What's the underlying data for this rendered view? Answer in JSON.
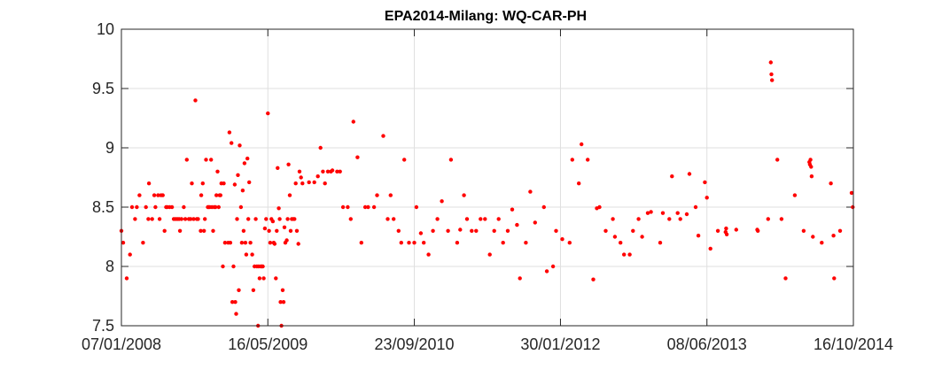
{
  "chart_data": {
    "type": "scatter",
    "title": "EPA2014-Milang: WQ-CAR-PH",
    "xlabel": "",
    "ylabel": "",
    "x_is_date": true,
    "xlim": [
      "2008-01-07",
      "2014-10-16"
    ],
    "ylim": [
      7.5,
      10
    ],
    "x_ticks": [
      "2008-01-07",
      "2009-05-16",
      "2010-09-23",
      "2012-01-30",
      "2013-06-08",
      "2014-10-16"
    ],
    "x_tick_labels": [
      "07/01/2008",
      "16/05/2009",
      "23/09/2010",
      "30/01/2012",
      "08/06/2013",
      "16/10/2014"
    ],
    "y_ticks": [
      7.5,
      8,
      8.5,
      9,
      9.5,
      10
    ],
    "y_tick_labels": [
      "7.5",
      "8",
      "8.5",
      "9",
      "9.5",
      "10"
    ],
    "grid": true,
    "series": [
      {
        "marker_color": "#ff0000",
        "points": [
          [
            "2008-01-07",
            8.3
          ],
          [
            "2008-01-13",
            8.2
          ],
          [
            "2008-01-25",
            7.9
          ],
          [
            "2008-02-05",
            8.1
          ],
          [
            "2008-02-12",
            8.5
          ],
          [
            "2008-02-22",
            8.4
          ],
          [
            "2008-02-28",
            8.5
          ],
          [
            "2008-03-08",
            8.6
          ],
          [
            "2008-03-20",
            8.2
          ],
          [
            "2008-03-30",
            8.5
          ],
          [
            "2008-04-07",
            8.4
          ],
          [
            "2008-04-09",
            8.7
          ],
          [
            "2008-04-20",
            8.4
          ],
          [
            "2008-04-27",
            8.6
          ],
          [
            "2008-05-01",
            8.5
          ],
          [
            "2008-05-10",
            8.6
          ],
          [
            "2008-05-20",
            8.6
          ],
          [
            "2008-05-26",
            8.6
          ],
          [
            "2008-06-01",
            8.3
          ],
          [
            "2008-06-10",
            8.5
          ],
          [
            "2008-06-18",
            8.5
          ],
          [
            "2008-06-26",
            8.5
          ],
          [
            "2008-07-08",
            8.4
          ],
          [
            "2008-07-14",
            8.4
          ],
          [
            "2008-07-20",
            8.4
          ],
          [
            "2008-07-28",
            8.4
          ],
          [
            "2008-08-05",
            8.5
          ],
          [
            "2008-08-10",
            8.4
          ],
          [
            "2008-08-15",
            8.9
          ],
          [
            "2008-08-22",
            8.4
          ],
          [
            "2008-09-01",
            8.7
          ],
          [
            "2008-09-07",
            8.4
          ],
          [
            "2008-09-13",
            9.4
          ],
          [
            "2008-09-22",
            8.4
          ],
          [
            "2008-10-01",
            8.3
          ],
          [
            "2008-10-03",
            8.6
          ],
          [
            "2008-10-08",
            8.7
          ],
          [
            "2008-10-12",
            8.3
          ],
          [
            "2008-10-19",
            8.9
          ],
          [
            "2008-10-25",
            8.5
          ],
          [
            "2008-11-01",
            8.5
          ],
          [
            "2008-11-05",
            8.9
          ],
          [
            "2008-11-12",
            8.3
          ],
          [
            "2008-11-20",
            8.5
          ],
          [
            "2008-11-27",
            8.8
          ],
          [
            "2008-12-04",
            8.6
          ],
          [
            "2008-12-10",
            8.7
          ],
          [
            "2008-12-15",
            8.0
          ],
          [
            "2008-12-22",
            8.2
          ],
          [
            "2009-01-02",
            8.2
          ],
          [
            "2009-01-06",
            9.13
          ],
          [
            "2009-01-13",
            9.04
          ],
          [
            "2009-01-16",
            7.7
          ],
          [
            "2009-01-20",
            8.0
          ],
          [
            "2009-01-24",
            8.69
          ],
          [
            "2009-01-29",
            7.6
          ],
          [
            "2009-02-04",
            8.77
          ],
          [
            "2009-02-10",
            9.02
          ],
          [
            "2009-02-14",
            8.5
          ],
          [
            "2009-02-20",
            8.64
          ],
          [
            "2009-02-26",
            8.87
          ],
          [
            "2009-03-04",
            8.1
          ],
          [
            "2009-03-08",
            8.91
          ],
          [
            "2009-03-14",
            8.71
          ],
          [
            "2009-03-28",
            7.8
          ],
          [
            "2009-04-05",
            8.4
          ],
          [
            "2009-04-13",
            7.5
          ],
          [
            "2009-04-15",
            8.0
          ],
          [
            "2009-04-22",
            8.0
          ],
          [
            "2009-04-29",
            8.0
          ],
          [
            "2009-05-06",
            8.32
          ],
          [
            "2009-05-16",
            9.29
          ],
          [
            "2009-05-20",
            8.3
          ],
          [
            "2009-06-02",
            8.38
          ],
          [
            "2009-06-08",
            8.19
          ],
          [
            "2009-06-12",
            7.9
          ],
          [
            "2009-06-18",
            8.83
          ],
          [
            "2009-06-22",
            8.49
          ],
          [
            "2009-06-28",
            7.7
          ],
          [
            "2009-07-05",
            7.8
          ],
          [
            "2009-07-11",
            8.33
          ],
          [
            "2009-07-19",
            8.22
          ],
          [
            "2009-07-25",
            8.86
          ],
          [
            "2009-08-01",
            8.3
          ],
          [
            "2009-08-10",
            8.4
          ],
          [
            "2009-08-18",
            8.7
          ],
          [
            "2009-08-27",
            8.19
          ],
          [
            "2009-09-05",
            8.75
          ],
          [
            "2009-10-02",
            8.71
          ],
          [
            "2009-11-10",
            9.0
          ],
          [
            "2009-11-25",
            8.7
          ],
          [
            "2009-12-05",
            8.8
          ],
          [
            "2009-12-15",
            8.8
          ],
          [
            "2010-01-05",
            8.8
          ],
          [
            "2010-01-25",
            8.5
          ],
          [
            "2010-02-10",
            8.5
          ],
          [
            "2010-03-01",
            9.22
          ],
          [
            "2010-03-28",
            8.2
          ],
          [
            "2010-05-10",
            8.5
          ],
          [
            "2010-06-10",
            9.1
          ],
          [
            "2010-07-15",
            8.4
          ],
          [
            "2010-08-20",
            8.9
          ],
          [
            "2010-09-23",
            8.2
          ],
          [
            "2010-10-15",
            8.28
          ],
          [
            "2010-11-10",
            8.1
          ],
          [
            "2010-12-10",
            8.4
          ],
          [
            "2011-01-15",
            8.3
          ],
          [
            "2011-02-15",
            8.2
          ],
          [
            "2011-03-20",
            8.4
          ],
          [
            "2011-04-20",
            8.3
          ],
          [
            "2011-05-20",
            8.4
          ],
          [
            "2011-06-20",
            8.3
          ],
          [
            "2011-07-20",
            8.2
          ],
          [
            "2011-08-20",
            8.48
          ],
          [
            "2011-09-15",
            7.9
          ],
          [
            "2011-10-20",
            8.63
          ],
          [
            "2011-12-15",
            7.96
          ],
          [
            "2012-01-15",
            8.3
          ],
          [
            "2012-03-10",
            8.9
          ],
          [
            "2012-04-10",
            9.03
          ],
          [
            "2012-05-20",
            7.89
          ],
          [
            "2012-06-10",
            8.5
          ],
          [
            "2012-07-25",
            8.4
          ],
          [
            "2012-08-20",
            8.2
          ],
          [
            "2012-09-20",
            8.1
          ],
          [
            "2012-10-20",
            8.4
          ],
          [
            "2012-11-20",
            8.45
          ],
          [
            "2013-01-10",
            8.45
          ],
          [
            "2013-02-10",
            8.76
          ],
          [
            "2013-03-10",
            8.4
          ],
          [
            "2013-04-10",
            8.78
          ],
          [
            "2013-05-10",
            8.26
          ],
          [
            "2013-06-08",
            8.58
          ],
          [
            "2013-07-15",
            8.3
          ],
          [
            "2013-09-15",
            8.31
          ],
          [
            "2014-01-01",
            8.4
          ],
          [
            "2014-02-01",
            8.9
          ],
          [
            "2014-03-01",
            7.9
          ],
          [
            "2014-04-01",
            8.6
          ],
          [
            "2014-05-01",
            8.3
          ],
          [
            "2014-06-01",
            8.25
          ],
          [
            "2014-07-01",
            8.2
          ],
          [
            "2014-08-01",
            8.7
          ],
          [
            "2014-09-01",
            8.3
          ],
          [
            "2014-10-10",
            8.62
          ],
          [
            "2014-10-14",
            8.5
          ],
          [
            "2008-05-15",
            8.4
          ],
          [
            "2008-06-06",
            8.5
          ],
          [
            "2008-07-02",
            8.4
          ],
          [
            "2008-07-23",
            8.3
          ],
          [
            "2008-08-28",
            8.4
          ],
          [
            "2008-09-18",
            8.4
          ],
          [
            "2008-10-15",
            8.4
          ],
          [
            "2008-10-28",
            8.5
          ],
          [
            "2008-11-08",
            8.5
          ],
          [
            "2008-11-16",
            8.5
          ],
          [
            "2008-11-23",
            8.6
          ],
          [
            "2008-12-01",
            8.5
          ],
          [
            "2008-12-07",
            8.6
          ],
          [
            "2008-12-18",
            8.7
          ],
          [
            "2009-01-09",
            8.2
          ],
          [
            "2009-01-26",
            7.7
          ],
          [
            "2009-02-01",
            8.4
          ],
          [
            "2009-02-07",
            7.8
          ],
          [
            "2009-02-17",
            8.2
          ],
          [
            "2009-02-23",
            8.3
          ],
          [
            "2009-03-01",
            8.2
          ],
          [
            "2009-03-11",
            8.4
          ],
          [
            "2009-03-18",
            8.2
          ],
          [
            "2009-03-24",
            8.1
          ],
          [
            "2009-04-01",
            8.0
          ],
          [
            "2009-04-09",
            8.0
          ],
          [
            "2009-04-18",
            7.9
          ],
          [
            "2009-04-25",
            8.0
          ],
          [
            "2009-05-02",
            7.9
          ],
          [
            "2009-05-10",
            8.4
          ],
          [
            "2009-05-24",
            8.2
          ],
          [
            "2009-05-28",
            8.4
          ],
          [
            "2009-06-05",
            8.2
          ],
          [
            "2009-06-15",
            8.3
          ],
          [
            "2009-06-25",
            8.4
          ],
          [
            "2009-07-01",
            7.5
          ],
          [
            "2009-07-08",
            7.7
          ],
          [
            "2009-07-14",
            8.2
          ],
          [
            "2009-07-22",
            8.4
          ],
          [
            "2009-07-29",
            8.6
          ],
          [
            "2009-08-05",
            8.4
          ],
          [
            "2009-08-14",
            8.4
          ],
          [
            "2009-08-22",
            8.3
          ],
          [
            "2009-08-31",
            8.8
          ],
          [
            "2009-09-10",
            8.7
          ],
          [
            "2009-10-20",
            8.71
          ],
          [
            "2009-11-01",
            8.76
          ],
          [
            "2009-11-18",
            8.8
          ],
          [
            "2009-12-20",
            8.81
          ],
          [
            "2010-01-15",
            8.8
          ],
          [
            "2010-02-20",
            8.4
          ],
          [
            "2010-03-15",
            8.92
          ],
          [
            "2010-04-10",
            8.5
          ],
          [
            "2010-04-20",
            8.5
          ],
          [
            "2010-05-20",
            8.6
          ],
          [
            "2010-06-25",
            8.4
          ],
          [
            "2010-07-05",
            8.6
          ],
          [
            "2010-08-01",
            8.3
          ],
          [
            "2010-08-10",
            8.2
          ],
          [
            "2010-09-05",
            8.2
          ],
          [
            "2010-09-30",
            8.5
          ],
          [
            "2010-10-25",
            8.2
          ],
          [
            "2010-11-25",
            8.3
          ],
          [
            "2010-12-25",
            8.55
          ],
          [
            "2011-01-25",
            8.9
          ],
          [
            "2011-02-25",
            8.31
          ],
          [
            "2011-03-10",
            8.6
          ],
          [
            "2011-04-05",
            8.3
          ],
          [
            "2011-05-05",
            8.4
          ],
          [
            "2011-06-05",
            8.1
          ],
          [
            "2011-07-05",
            8.4
          ],
          [
            "2011-08-05",
            8.3
          ],
          [
            "2011-09-05",
            8.35
          ],
          [
            "2011-10-05",
            8.2
          ],
          [
            "2011-11-05",
            8.37
          ],
          [
            "2011-12-05",
            8.5
          ],
          [
            "2012-01-05",
            8.0
          ],
          [
            "2012-02-05",
            8.23
          ],
          [
            "2012-03-01",
            8.2
          ],
          [
            "2012-04-01",
            8.7
          ],
          [
            "2012-05-01",
            8.9
          ],
          [
            "2012-06-01",
            8.49
          ],
          [
            "2012-07-01",
            8.3
          ],
          [
            "2012-08-01",
            8.25
          ],
          [
            "2012-09-01",
            8.1
          ],
          [
            "2012-10-01",
            8.3
          ],
          [
            "2012-11-01",
            8.25
          ],
          [
            "2012-12-01",
            8.46
          ],
          [
            "2013-01-01",
            8.2
          ],
          [
            "2013-02-01",
            8.4
          ],
          [
            "2013-03-01",
            8.45
          ],
          [
            "2013-04-01",
            8.44
          ],
          [
            "2013-05-01",
            8.5
          ],
          [
            "2013-06-01",
            8.71
          ],
          [
            "2013-06-20",
            8.15
          ],
          [
            "2013-08-10",
            8.29
          ],
          [
            "2013-08-12",
            8.32
          ],
          [
            "2013-08-14",
            8.27
          ],
          [
            "2013-11-25",
            8.31
          ],
          [
            "2013-11-27",
            8.3
          ],
          [
            "2014-01-10",
            9.72
          ],
          [
            "2014-01-12",
            9.62
          ],
          [
            "2014-01-14",
            9.57
          ],
          [
            "2014-02-15",
            8.4
          ],
          [
            "2014-05-20",
            8.88
          ],
          [
            "2014-05-22",
            8.86
          ],
          [
            "2014-05-24",
            8.9
          ],
          [
            "2014-05-26",
            8.84
          ],
          [
            "2014-05-28",
            8.76
          ],
          [
            "2014-08-10",
            8.26
          ],
          [
            "2014-08-12",
            7.9
          ]
        ]
      }
    ]
  }
}
